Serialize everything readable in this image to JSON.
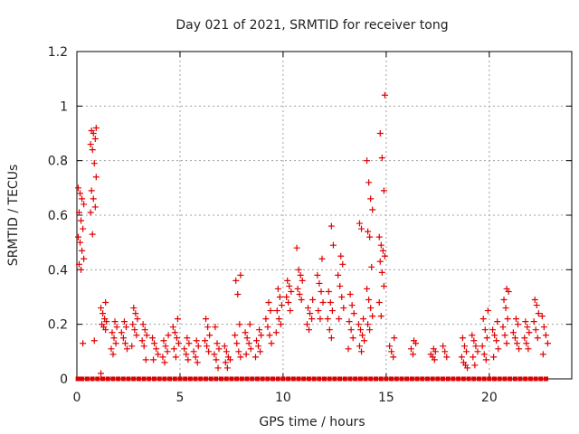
{
  "chart_data": {
    "type": "scatter",
    "title": "Day 021 of 2021, SRMTID for receiver tong",
    "xlabel": "GPS time / hours",
    "ylabel": "SRMTID / TECUs",
    "xlim": [
      0,
      24
    ],
    "ylim": [
      0,
      1.2
    ],
    "x_ticks": [
      0,
      5,
      10,
      15,
      20
    ],
    "x_tick_labels": [
      "0",
      "5",
      "10",
      "15",
      "20"
    ],
    "y_ticks": [
      0,
      0.2,
      0.4,
      0.6,
      0.8,
      1.0,
      1.2
    ],
    "y_tick_labels": [
      "0",
      "0.2",
      "0.4",
      "0.6",
      "0.8",
      "1",
      "1.2"
    ],
    "grid": true,
    "marker": "plus",
    "color": "#e00000",
    "clusters": [
      {
        "x": 0.2,
        "values": [
          0.7,
          0.68,
          0.66,
          0.64,
          0.61,
          0.58,
          0.55,
          0.52,
          0.5,
          0.47,
          0.44,
          0.42,
          0.4,
          0.13
        ]
      },
      {
        "x": 0.8,
        "values": [
          0.92,
          0.91,
          0.9,
          0.88,
          0.86,
          0.84,
          0.79,
          0.74,
          0.69,
          0.66,
          0.63,
          0.61,
          0.53,
          0.14
        ]
      },
      {
        "x": 1.3,
        "values": [
          0.28,
          0.26,
          0.24,
          0.22,
          0.21,
          0.2,
          0.19,
          0.18,
          0.02
        ]
      },
      {
        "x": 1.8,
        "values": [
          0.21,
          0.19,
          0.17,
          0.15,
          0.13,
          0.11,
          0.09
        ]
      },
      {
        "x": 2.3,
        "values": [
          0.21,
          0.19,
          0.17,
          0.15,
          0.13,
          0.11
        ]
      },
      {
        "x": 2.8,
        "values": [
          0.26,
          0.24,
          0.22,
          0.2,
          0.18,
          0.16,
          0.12
        ]
      },
      {
        "x": 3.3,
        "values": [
          0.2,
          0.18,
          0.16,
          0.14,
          0.12,
          0.07
        ]
      },
      {
        "x": 3.8,
        "values": [
          0.15,
          0.13,
          0.11,
          0.09,
          0.07
        ]
      },
      {
        "x": 4.3,
        "values": [
          0.16,
          0.14,
          0.12,
          0.1,
          0.08,
          0.06
        ]
      },
      {
        "x": 4.8,
        "values": [
          0.22,
          0.19,
          0.17,
          0.15,
          0.13,
          0.11,
          0.08
        ]
      },
      {
        "x": 5.3,
        "values": [
          0.15,
          0.13,
          0.11,
          0.09,
          0.07
        ]
      },
      {
        "x": 5.8,
        "values": [
          0.14,
          0.12,
          0.1,
          0.08,
          0.06
        ]
      },
      {
        "x": 6.3,
        "values": [
          0.22,
          0.19,
          0.16,
          0.14,
          0.12,
          0.1
        ]
      },
      {
        "x": 6.8,
        "values": [
          0.19,
          0.13,
          0.11,
          0.09,
          0.07,
          0.04
        ]
      },
      {
        "x": 7.3,
        "values": [
          0.12,
          0.1,
          0.08,
          0.07,
          0.06,
          0.04
        ]
      },
      {
        "x": 7.8,
        "values": [
          0.38,
          0.36,
          0.31,
          0.2,
          0.16,
          0.13,
          0.1,
          0.08
        ]
      },
      {
        "x": 8.3,
        "values": [
          0.2,
          0.17,
          0.15,
          0.13,
          0.11,
          0.09
        ]
      },
      {
        "x": 8.8,
        "values": [
          0.18,
          0.16,
          0.14,
          0.12,
          0.1,
          0.08
        ]
      },
      {
        "x": 9.3,
        "values": [
          0.28,
          0.25,
          0.22,
          0.19,
          0.16,
          0.13
        ]
      },
      {
        "x": 9.8,
        "values": [
          0.33,
          0.3,
          0.27,
          0.25,
          0.22,
          0.2,
          0.17
        ]
      },
      {
        "x": 10.3,
        "values": [
          0.36,
          0.34,
          0.32,
          0.3,
          0.28,
          0.25
        ]
      },
      {
        "x": 10.8,
        "values": [
          0.48,
          0.4,
          0.38,
          0.36,
          0.33,
          0.31,
          0.29
        ]
      },
      {
        "x": 11.3,
        "values": [
          0.29,
          0.26,
          0.24,
          0.22,
          0.2,
          0.18
        ]
      },
      {
        "x": 11.8,
        "values": [
          0.44,
          0.38,
          0.35,
          0.32,
          0.28,
          0.25,
          0.22
        ]
      },
      {
        "x": 12.3,
        "values": [
          0.56,
          0.49,
          0.32,
          0.28,
          0.25,
          0.22,
          0.18,
          0.15
        ]
      },
      {
        "x": 12.8,
        "values": [
          0.45,
          0.42,
          0.38,
          0.34,
          0.3,
          0.26,
          0.22
        ]
      },
      {
        "x": 13.3,
        "values": [
          0.31,
          0.27,
          0.24,
          0.21,
          0.18,
          0.15,
          0.11
        ]
      },
      {
        "x": 13.8,
        "values": [
          0.57,
          0.55,
          0.22,
          0.2,
          0.18,
          0.16,
          0.14,
          0.12,
          0.1
        ]
      },
      {
        "x": 14.2,
        "values": [
          0.8,
          0.72,
          0.66,
          0.62,
          0.54,
          0.52,
          0.41,
          0.33,
          0.29,
          0.26,
          0.23,
          0.2,
          0.18
        ]
      },
      {
        "x": 14.8,
        "values": [
          1.04,
          0.9,
          0.81,
          0.69,
          0.52,
          0.49,
          0.47,
          0.45,
          0.43,
          0.39,
          0.34,
          0.28,
          0.23
        ]
      },
      {
        "x": 15.3,
        "values": [
          0.15,
          0.12,
          0.1,
          0.08
        ]
      },
      {
        "x": 16.3,
        "values": [
          0.14,
          0.13,
          0.11,
          0.09
        ]
      },
      {
        "x": 17.3,
        "values": [
          0.11,
          0.1,
          0.09,
          0.08,
          0.07
        ]
      },
      {
        "x": 17.8,
        "values": [
          0.12,
          0.1,
          0.08
        ]
      },
      {
        "x": 18.8,
        "values": [
          0.15,
          0.12,
          0.1,
          0.08,
          0.06,
          0.05,
          0.04
        ]
      },
      {
        "x": 19.3,
        "values": [
          0.16,
          0.14,
          0.12,
          0.1,
          0.08,
          0.05
        ]
      },
      {
        "x": 19.8,
        "values": [
          0.25,
          0.22,
          0.18,
          0.15,
          0.12,
          0.09,
          0.07
        ]
      },
      {
        "x": 20.3,
        "values": [
          0.21,
          0.18,
          0.16,
          0.14,
          0.11,
          0.08
        ]
      },
      {
        "x": 20.8,
        "values": [
          0.33,
          0.32,
          0.29,
          0.26,
          0.22,
          0.19,
          0.16,
          0.13
        ]
      },
      {
        "x": 21.3,
        "values": [
          0.22,
          0.2,
          0.17,
          0.15,
          0.13,
          0.11
        ]
      },
      {
        "x": 21.8,
        "values": [
          0.21,
          0.19,
          0.17,
          0.15,
          0.13,
          0.11
        ]
      },
      {
        "x": 22.3,
        "values": [
          0.29,
          0.27,
          0.24,
          0.21,
          0.18,
          0.15
        ]
      },
      {
        "x": 22.7,
        "values": [
          0.23,
          0.19,
          0.16,
          0.13,
          0.09
        ]
      }
    ],
    "zero_points": [
      0.05,
      0.25,
      0.5,
      0.75,
      1.0,
      1.25,
      1.5,
      1.75,
      2.0,
      2.25,
      2.5,
      2.75,
      3.0,
      3.25,
      3.5,
      3.75,
      4.0,
      4.25,
      4.5,
      4.75,
      5.0,
      5.25,
      5.5,
      5.75,
      6.0,
      6.25,
      6.5,
      6.75,
      7.0,
      7.25,
      7.5,
      7.75,
      8.0,
      8.25,
      8.5,
      8.75,
      9.0,
      9.25,
      9.5,
      9.75,
      10.0,
      10.25,
      10.5,
      10.75,
      11.0,
      11.25,
      11.5,
      11.75,
      12.0,
      12.25,
      12.5,
      12.75,
      13.0,
      13.25,
      13.5,
      13.75,
      14.0,
      14.25,
      14.5,
      14.75,
      15.0,
      15.25,
      15.5,
      15.75,
      16.0,
      16.25,
      16.5,
      16.75,
      17.0,
      17.25,
      17.5,
      17.75,
      18.0,
      18.25,
      18.5,
      18.75,
      19.0,
      19.25,
      19.5,
      19.75,
      20.0,
      20.25,
      20.5,
      20.75,
      21.0,
      21.25,
      21.5,
      21.75,
      22.0,
      22.25,
      22.5,
      22.75
    ]
  }
}
